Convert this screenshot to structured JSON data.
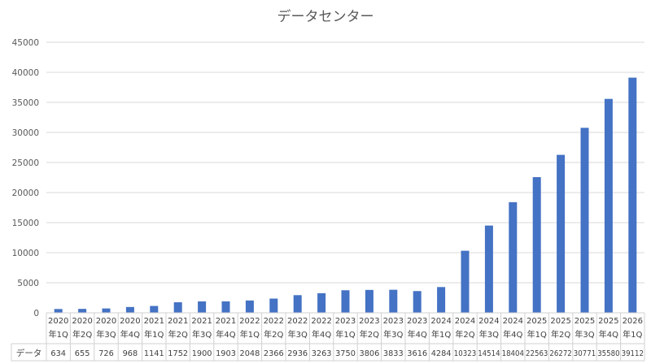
{
  "chart_data": {
    "type": "bar",
    "title": "データセンター",
    "categories": [
      [
        "2020",
        "年1Q"
      ],
      [
        "2020",
        "年2Q"
      ],
      [
        "2020",
        "年3Q"
      ],
      [
        "2020",
        "年4Q"
      ],
      [
        "2021",
        "年1Q"
      ],
      [
        "2021",
        "年2Q"
      ],
      [
        "2021",
        "年3Q"
      ],
      [
        "2021",
        "年4Q"
      ],
      [
        "2022",
        "年1Q"
      ],
      [
        "2022",
        "年2Q"
      ],
      [
        "2022",
        "年3Q"
      ],
      [
        "2022",
        "年4Q"
      ],
      [
        "2023",
        "年1Q"
      ],
      [
        "2023",
        "年2Q"
      ],
      [
        "2023",
        "年3Q"
      ],
      [
        "2023",
        "年4Q"
      ],
      [
        "2024",
        "年1Q"
      ],
      [
        "2024",
        "年2Q"
      ],
      [
        "2024",
        "年3Q"
      ],
      [
        "2024",
        "年4Q"
      ],
      [
        "2025",
        "年1Q"
      ],
      [
        "2025",
        "年2Q"
      ],
      [
        "2025",
        "年3Q"
      ],
      [
        "2025",
        "年4Q"
      ],
      [
        "2026",
        "年1Q"
      ]
    ],
    "series": [
      {
        "name": "データ",
        "color": "#4472c4",
        "values": [
          634,
          655,
          726,
          968,
          1141,
          1752,
          1900,
          1903,
          2048,
          2366,
          2936,
          3263,
          3750,
          3806,
          3833,
          3616,
          4284,
          10323,
          14514,
          18404,
          22563,
          26272,
          30771,
          35580,
          39112
        ]
      }
    ],
    "yticks": [
      0,
      5000,
      10000,
      15000,
      20000,
      25000,
      30000,
      35000,
      40000,
      45000
    ],
    "ylim": [
      0,
      45000
    ],
    "grid": true,
    "legend": "data-table"
  }
}
